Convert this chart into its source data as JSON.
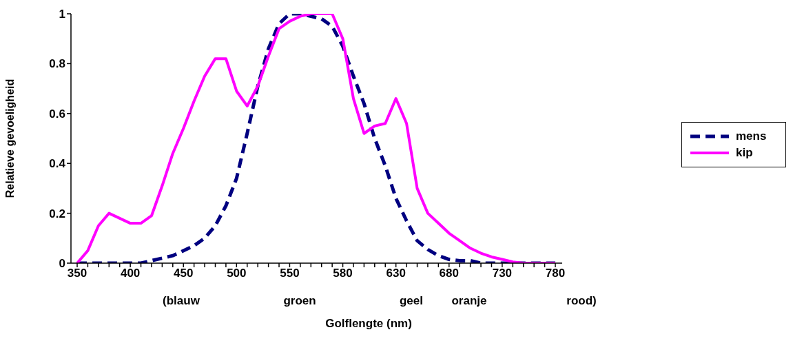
{
  "chart_data": {
    "type": "line",
    "xlabel": "Golflengte (nm)",
    "ylabel": "Relatieve gevoeligheid",
    "categories": [
      "350",
      null,
      null,
      null,
      null,
      "400",
      null,
      null,
      null,
      null,
      "450",
      null,
      null,
      null,
      null,
      "500",
      null,
      null,
      null,
      null,
      "550",
      null,
      null,
      null,
      null,
      "580",
      null,
      null,
      null,
      null,
      "630",
      null,
      null,
      null,
      null,
      "680",
      null,
      null,
      null,
      null,
      "730",
      null,
      null,
      null,
      null,
      "780"
    ],
    "series": [
      {
        "name": "mens",
        "color": "#000080",
        "line_style": "dashed",
        "values": [
          0,
          0,
          0,
          0,
          0,
          0,
          0,
          0.01,
          0.02,
          0.03,
          0.05,
          0.07,
          0.1,
          0.15,
          0.23,
          0.34,
          0.52,
          0.71,
          0.86,
          0.96,
          1,
          1,
          0.99,
          0.98,
          0.95,
          0.87,
          0.75,
          0.64,
          0.5,
          0.39,
          0.26,
          0.17,
          0.09,
          0.055,
          0.03,
          0.015,
          0.01,
          0.01,
          0,
          0,
          0,
          0,
          0,
          0,
          0,
          0
        ]
      },
      {
        "name": "kip",
        "color": "#ff00ff",
        "line_style": "solid",
        "values": [
          0,
          0.05,
          0.15,
          0.2,
          0.18,
          0.16,
          0.16,
          0.19,
          0.31,
          0.44,
          0.54,
          0.65,
          0.75,
          0.82,
          0.82,
          0.69,
          0.63,
          0.71,
          0.83,
          0.94,
          0.97,
          0.99,
          1,
          1,
          1,
          0.9,
          0.66,
          0.52,
          0.55,
          0.56,
          0.66,
          0.56,
          0.3,
          0.2,
          0.16,
          0.12,
          0.09,
          0.06,
          0.04,
          0.025,
          0.015,
          0.005,
          0,
          0,
          0,
          0
        ]
      }
    ],
    "ylim": [
      0,
      1
    ],
    "yticks": [
      0,
      0.2,
      0.4,
      0.6,
      0.8,
      1
    ],
    "grid": false,
    "legend": "right",
    "marker": "none",
    "annotations": [
      "(blauw",
      "groen",
      "geel",
      "oranje",
      "rood)"
    ]
  }
}
